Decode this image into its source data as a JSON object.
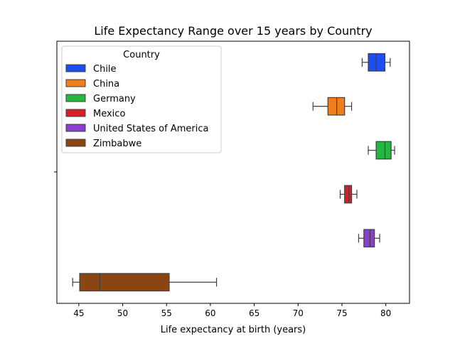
{
  "chart_data": {
    "type": "boxplot",
    "orientation": "horizontal",
    "title": "Life Expectancy Range over 15 years by Country",
    "xlabel": "Life expectancy at birth (years)",
    "ylabel": "",
    "xlim": [
      42.5,
      82.7
    ],
    "xticks": [
      45,
      50,
      55,
      60,
      65,
      70,
      75,
      80
    ],
    "grid": false,
    "legend": {
      "title": "Country",
      "position": "upper-left"
    },
    "series": [
      {
        "name": "Chile",
        "color": "#1f4ef0",
        "whisker_low": 77.3,
        "q1": 78.0,
        "median": 78.9,
        "q3": 79.9,
        "whisker_high": 80.5
      },
      {
        "name": "China",
        "color": "#f07f1b",
        "whisker_low": 71.7,
        "q1": 73.4,
        "median": 74.4,
        "q3": 75.3,
        "whisker_high": 76.1
      },
      {
        "name": "Germany",
        "color": "#25b741",
        "whisker_low": 78.0,
        "q1": 78.9,
        "median": 79.9,
        "q3": 80.6,
        "whisker_high": 81.0
      },
      {
        "name": "Mexico",
        "color": "#d61f2b",
        "whisker_low": 74.8,
        "q1": 75.3,
        "median": 75.8,
        "q3": 76.1,
        "whisker_high": 76.7
      },
      {
        "name": "United States of America",
        "color": "#8a3fcf",
        "whisker_low": 76.9,
        "q1": 77.5,
        "median": 78.2,
        "q3": 78.7,
        "whisker_high": 79.3
      },
      {
        "name": "Zimbabwe",
        "color": "#8b4513",
        "whisker_low": 44.3,
        "q1": 45.1,
        "median": 47.4,
        "q3": 55.3,
        "whisker_high": 60.7
      }
    ]
  }
}
